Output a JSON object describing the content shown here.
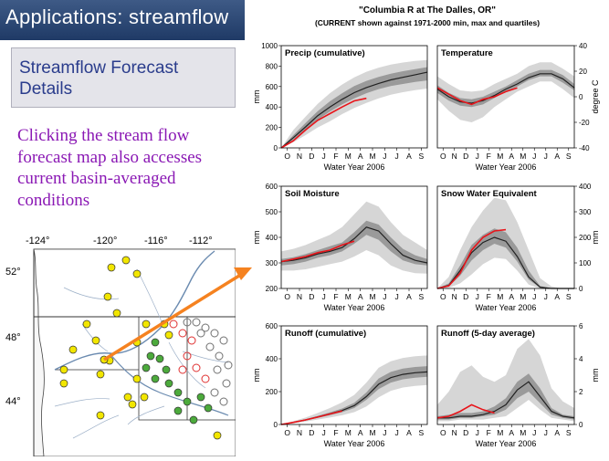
{
  "slide": {
    "title": "Applications:  streamflow",
    "section_title": "Streamflow Forecast Details",
    "body_text": "Clicking the stream flow forecast map also accesses current basin-averaged conditions",
    "colors": {
      "header_bg": "#2a4570",
      "section_text": "#2a3c8c",
      "body_text": "#8a18b4",
      "arrow": "#f58220"
    }
  },
  "map": {
    "lon_labels": [
      "-124°",
      "-120°",
      "-116°",
      "-112°"
    ],
    "lat_labels": [
      "52°",
      "48°",
      "44°"
    ],
    "marker_colors": {
      "yellow": "#f2e600",
      "green": "#4caa3c",
      "red_open": "#e03030",
      "grey_open": "#707070"
    }
  },
  "chart_header": {
    "title": "\"Columbia R at The Dalles, OR\"",
    "subtitle": "(CURRENT shown against 1971-2000 min, max and quartiles)"
  },
  "chart_data": [
    {
      "type": "area",
      "id": "precip",
      "title": "Precip (cumulative)",
      "xlabel": "Water Year 2006",
      "ylabel": "mm",
      "ylabel_side": "left",
      "categories": [
        "O",
        "N",
        "D",
        "J",
        "F",
        "M",
        "A",
        "M",
        "J",
        "J",
        "A",
        "S"
      ],
      "yticks": [
        0,
        200,
        400,
        600,
        800,
        1000
      ],
      "ylim": [
        0,
        1000
      ],
      "x": [
        0,
        1,
        2,
        3,
        4,
        5,
        6,
        7,
        8,
        9,
        10,
        11,
        12
      ],
      "series": [
        {
          "name": "min",
          "values": [
            0,
            55,
            125,
            200,
            260,
            330,
            390,
            440,
            485,
            520,
            545,
            565,
            580
          ]
        },
        {
          "name": "q1",
          "values": [
            0,
            80,
            175,
            275,
            355,
            425,
            485,
            535,
            575,
            605,
            625,
            645,
            660
          ]
        },
        {
          "name": "median",
          "values": [
            0,
            100,
            205,
            315,
            400,
            475,
            540,
            590,
            630,
            665,
            690,
            715,
            740
          ]
        },
        {
          "name": "q3",
          "values": [
            0,
            125,
            245,
            360,
            455,
            535,
            605,
            655,
            695,
            725,
            750,
            770,
            790
          ]
        },
        {
          "name": "max",
          "values": [
            0,
            175,
            305,
            430,
            535,
            620,
            690,
            745,
            785,
            815,
            835,
            850,
            860
          ]
        },
        {
          "name": "current",
          "values": [
            0,
            70,
            175,
            270,
            335,
            400,
            460,
            485,
            null,
            null,
            null,
            null,
            null
          ]
        }
      ]
    },
    {
      "type": "area",
      "id": "temperature",
      "title": "Temperature",
      "xlabel": "Water Year 2006",
      "ylabel": "degree C",
      "ylabel_side": "right",
      "categories": [
        "O",
        "N",
        "D",
        "J",
        "F",
        "M",
        "A",
        "M",
        "J",
        "J",
        "A",
        "S"
      ],
      "yticks": [
        -40,
        -20,
        0,
        20,
        40
      ],
      "ylim": [
        -40,
        40
      ],
      "x": [
        0,
        1,
        2,
        3,
        4,
        5,
        6,
        7,
        8,
        9,
        10,
        11,
        12
      ],
      "series": [
        {
          "name": "min",
          "values": [
            -2,
            -11,
            -18,
            -20,
            -16,
            -8,
            -2,
            4,
            8,
            12,
            12,
            6,
            -1
          ]
        },
        {
          "name": "q1",
          "values": [
            3,
            -3,
            -7,
            -8,
            -6,
            -1,
            4,
            8,
            13,
            16,
            16,
            11,
            5
          ]
        },
        {
          "name": "median",
          "values": [
            6,
            0,
            -4,
            -5,
            -3,
            1,
            6,
            10,
            15,
            18,
            18,
            14,
            7
          ]
        },
        {
          "name": "q3",
          "values": [
            9,
            3,
            -1,
            -2,
            0,
            4,
            8,
            13,
            18,
            21,
            21,
            17,
            10
          ]
        },
        {
          "name": "max",
          "values": [
            16,
            10,
            5,
            4,
            5,
            10,
            14,
            18,
            24,
            27,
            27,
            22,
            16
          ]
        },
        {
          "name": "current",
          "values": [
            7,
            2,
            -3,
            -6,
            -2,
            0,
            4,
            7,
            null,
            null,
            null,
            null,
            null
          ]
        }
      ]
    },
    {
      "type": "area",
      "id": "soil_moisture",
      "title": "Soil Moisture",
      "xlabel": "Water Year 2006",
      "ylabel": "mm",
      "ylabel_side": "left",
      "categories": [
        "O",
        "N",
        "D",
        "J",
        "F",
        "M",
        "A",
        "M",
        "J",
        "J",
        "A",
        "S"
      ],
      "yticks": [
        200,
        300,
        400,
        500,
        600
      ],
      "ylim": [
        200,
        600
      ],
      "x": [
        0,
        1,
        2,
        3,
        4,
        5,
        6,
        7,
        8,
        9,
        10,
        11,
        12
      ],
      "series": [
        {
          "name": "min",
          "values": [
            270,
            270,
            275,
            285,
            295,
            305,
            325,
            350,
            330,
            290,
            270,
            260,
            258
          ]
        },
        {
          "name": "q1",
          "values": [
            290,
            295,
            305,
            320,
            330,
            345,
            375,
            410,
            390,
            345,
            310,
            295,
            290
          ]
        },
        {
          "name": "median",
          "values": [
            305,
            310,
            320,
            335,
            345,
            360,
            395,
            440,
            425,
            375,
            330,
            310,
            300
          ]
        },
        {
          "name": "q3",
          "values": [
            315,
            322,
            335,
            350,
            365,
            380,
            420,
            465,
            450,
            400,
            355,
            330,
            315
          ]
        },
        {
          "name": "max",
          "values": [
            345,
            355,
            370,
            390,
            410,
            440,
            490,
            540,
            520,
            460,
            410,
            380,
            350
          ]
        },
        {
          "name": "current",
          "values": [
            305,
            315,
            325,
            340,
            350,
            370,
            385,
            null,
            null,
            null,
            null,
            null,
            null
          ]
        }
      ]
    },
    {
      "type": "area",
      "id": "swe",
      "title": "Snow Water Equivalent",
      "xlabel": "Water Year 2006",
      "ylabel": "mm",
      "ylabel_side": "right",
      "categories": [
        "O",
        "N",
        "D",
        "J",
        "F",
        "M",
        "A",
        "M",
        "J",
        "J",
        "A",
        "S"
      ],
      "yticks": [
        0,
        100,
        200,
        300,
        400
      ],
      "ylim": [
        0,
        400
      ],
      "x": [
        0,
        1,
        2,
        3,
        4,
        5,
        6,
        7,
        8,
        9,
        10,
        11,
        12
      ],
      "series": [
        {
          "name": "min",
          "values": [
            0,
            2,
            20,
            55,
            95,
            120,
            115,
            70,
            15,
            0,
            0,
            0,
            0
          ]
        },
        {
          "name": "q1",
          "values": [
            0,
            8,
            50,
            110,
            150,
            175,
            160,
            105,
            35,
            3,
            0,
            0,
            0
          ]
        },
        {
          "name": "median",
          "values": [
            0,
            12,
            70,
            140,
            180,
            200,
            185,
            125,
            45,
            5,
            0,
            0,
            0
          ]
        },
        {
          "name": "q3",
          "values": [
            0,
            20,
            90,
            170,
            210,
            235,
            220,
            160,
            70,
            10,
            0,
            0,
            0
          ]
        },
        {
          "name": "max",
          "values": [
            0,
            45,
            150,
            240,
            305,
            355,
            345,
            260,
            150,
            40,
            8,
            0,
            0
          ]
        },
        {
          "name": "current",
          "values": [
            0,
            10,
            60,
            150,
            200,
            225,
            230,
            null,
            null,
            null,
            null,
            null,
            null
          ]
        }
      ]
    },
    {
      "type": "area",
      "id": "runoff_cumulative",
      "title": "Runoff (cumulative)",
      "xlabel": "Water Year 2006",
      "ylabel": "mm",
      "ylabel_side": "left",
      "categories": [
        "O",
        "N",
        "D",
        "J",
        "F",
        "M",
        "A",
        "M",
        "J",
        "J",
        "A",
        "S"
      ],
      "yticks": [
        0,
        200,
        400,
        600
      ],
      "ylim": [
        0,
        600
      ],
      "x": [
        0,
        1,
        2,
        3,
        4,
        5,
        6,
        7,
        8,
        9,
        10,
        11,
        12
      ],
      "series": [
        {
          "name": "min",
          "values": [
            0,
            8,
            18,
            30,
            42,
            56,
            75,
            110,
            165,
            205,
            225,
            235,
            240
          ]
        },
        {
          "name": "q1",
          "values": [
            0,
            11,
            24,
            40,
            56,
            75,
            100,
            150,
            215,
            255,
            275,
            285,
            290
          ]
        },
        {
          "name": "median",
          "values": [
            0,
            13,
            28,
            46,
            65,
            85,
            115,
            170,
            245,
            285,
            305,
            315,
            320
          ]
        },
        {
          "name": "q3",
          "values": [
            0,
            15,
            32,
            52,
            74,
            97,
            132,
            195,
            280,
            320,
            340,
            350,
            355
          ]
        },
        {
          "name": "max",
          "values": [
            0,
            20,
            42,
            70,
            100,
            135,
            180,
            255,
            345,
            385,
            405,
            415,
            420
          ]
        },
        {
          "name": "current",
          "values": [
            0,
            13,
            28,
            45,
            64,
            82,
            null,
            null,
            null,
            null,
            null,
            null,
            null
          ]
        }
      ]
    },
    {
      "type": "area",
      "id": "runoff_5day",
      "title": "Runoff (5-day average)",
      "xlabel": "Water Year 2006",
      "ylabel": "mm",
      "ylabel_side": "right",
      "categories": [
        "O",
        "N",
        "D",
        "J",
        "F",
        "M",
        "A",
        "M",
        "J",
        "J",
        "A",
        "S"
      ],
      "yticks": [
        0,
        2,
        4,
        6
      ],
      "ylim": [
        0,
        6
      ],
      "x": [
        0,
        1,
        2,
        3,
        4,
        5,
        6,
        7,
        8,
        9,
        10,
        11,
        12
      ],
      "series": [
        {
          "name": "min",
          "values": [
            0.2,
            0.2,
            0.3,
            0.3,
            0.3,
            0.4,
            0.5,
            1.0,
            1.5,
            0.9,
            0.4,
            0.3,
            0.2
          ]
        },
        {
          "name": "q1",
          "values": [
            0.3,
            0.3,
            0.4,
            0.4,
            0.5,
            0.6,
            0.9,
            1.6,
            2.0,
            1.3,
            0.6,
            0.4,
            0.3
          ]
        },
        {
          "name": "median",
          "values": [
            0.4,
            0.4,
            0.5,
            0.5,
            0.6,
            0.8,
            1.2,
            2.1,
            2.6,
            1.7,
            0.8,
            0.5,
            0.4
          ]
        },
        {
          "name": "q3",
          "values": [
            0.5,
            0.6,
            0.7,
            0.7,
            0.8,
            1.1,
            1.6,
            2.6,
            3.1,
            2.2,
            1.0,
            0.6,
            0.5
          ]
        },
        {
          "name": "max",
          "values": [
            1.2,
            2.0,
            3.2,
            3.6,
            2.9,
            2.6,
            3.0,
            4.6,
            5.2,
            4.2,
            2.2,
            1.4,
            1.0
          ]
        },
        {
          "name": "current",
          "values": [
            0.4,
            0.5,
            0.8,
            1.2,
            0.9,
            0.7,
            null,
            null,
            null,
            null,
            null,
            null,
            null
          ]
        }
      ]
    }
  ]
}
